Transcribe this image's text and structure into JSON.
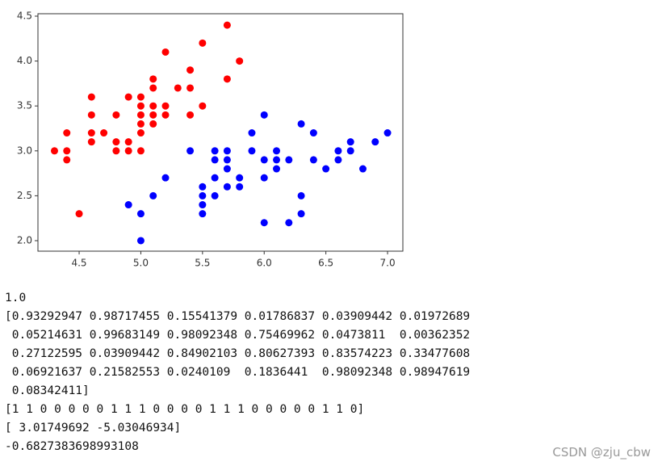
{
  "chart_data": {
    "type": "scatter",
    "xlim": [
      4.166,
      7.124
    ],
    "ylim": [
      1.883,
      4.527
    ],
    "xticks": [
      4.5,
      {
        "value": 5,
        "label": "5.0"
      },
      5.5,
      {
        "value": 6,
        "label": "6.0"
      },
      6.5,
      {
        "value": 7,
        "label": "7.0"
      }
    ],
    "yticks": [
      {
        "value": 2,
        "label": "2.0"
      },
      2.5,
      {
        "value": 3,
        "label": "3.0"
      },
      3.5,
      {
        "value": 4,
        "label": "4.0"
      },
      4.5
    ],
    "series": [
      {
        "color": "#ff0000",
        "x": [
          4.3,
          4.4,
          4.4,
          4.4,
          4.5,
          4.6,
          4.6,
          4.6,
          4.6,
          4.7,
          4.8,
          4.8,
          4.8,
          4.9,
          4.9,
          4.9,
          5.0,
          5.0,
          5.0,
          5.0,
          5.0,
          5.0,
          5.1,
          5.1,
          5.1,
          5.1,
          5.1,
          5.2,
          5.2,
          5.2,
          5.3,
          5.4,
          5.4,
          5.4,
          5.5,
          5.5,
          5.7,
          5.7,
          5.8
        ],
        "values": [
          3.0,
          3.2,
          3.0,
          2.9,
          2.3,
          3.6,
          3.4,
          3.2,
          3.1,
          3.2,
          3.4,
          3.1,
          3.0,
          3.6,
          3.1,
          3.0,
          3.6,
          3.5,
          3.4,
          3.3,
          3.2,
          3.0,
          3.8,
          3.7,
          3.5,
          3.4,
          3.3,
          4.1,
          3.5,
          3.4,
          3.7,
          3.9,
          3.7,
          3.4,
          4.2,
          3.5,
          4.4,
          3.8,
          4.0
        ]
      },
      {
        "color": "#0000ff",
        "x": [
          4.9,
          5.0,
          5.0,
          5.1,
          5.2,
          5.4,
          5.5,
          5.5,
          5.5,
          5.5,
          5.6,
          5.6,
          5.6,
          5.6,
          5.7,
          5.7,
          5.7,
          5.7,
          5.8,
          5.8,
          5.9,
          5.9,
          6.0,
          6.0,
          6.0,
          6.0,
          6.1,
          6.1,
          6.1,
          6.2,
          6.2,
          6.3,
          6.3,
          6.3,
          6.4,
          6.4,
          6.5,
          6.6,
          6.6,
          6.7,
          6.7,
          6.8,
          6.9,
          7.0
        ],
        "values": [
          2.4,
          2.3,
          2.0,
          2.5,
          2.7,
          3.0,
          2.6,
          2.5,
          2.4,
          2.3,
          3.0,
          2.9,
          2.7,
          2.5,
          3.0,
          2.9,
          2.8,
          2.6,
          2.7,
          2.6,
          3.2,
          3.0,
          3.4,
          2.9,
          2.7,
          2.2,
          3.0,
          2.9,
          2.8,
          2.9,
          2.2,
          3.3,
          2.5,
          2.3,
          3.2,
          2.9,
          2.8,
          3.0,
          2.9,
          3.1,
          3.0,
          2.8,
          3.1,
          3.2
        ]
      }
    ]
  },
  "output_lines": [
    "1.0",
    "[0.93292947 0.98717455 0.15541379 0.01786837 0.03909442 0.01972689",
    " 0.05214631 0.99683149 0.98092348 0.75469962 0.0473811  0.00362352",
    " 0.27122595 0.03909442 0.84902103 0.80627393 0.83574223 0.33477608",
    " 0.06921637 0.21582553 0.0240109  0.1836441  0.98092348 0.98947619",
    " 0.08342411]",
    "[1 1 0 0 0 0 0 1 1 1 0 0 0 0 1 1 1 0 0 0 0 0 1 1 0]",
    "[ 3.01749692 -5.03046934]",
    "-0.6827383698993108"
  ],
  "watermark": "CSDN @zju_cbw"
}
